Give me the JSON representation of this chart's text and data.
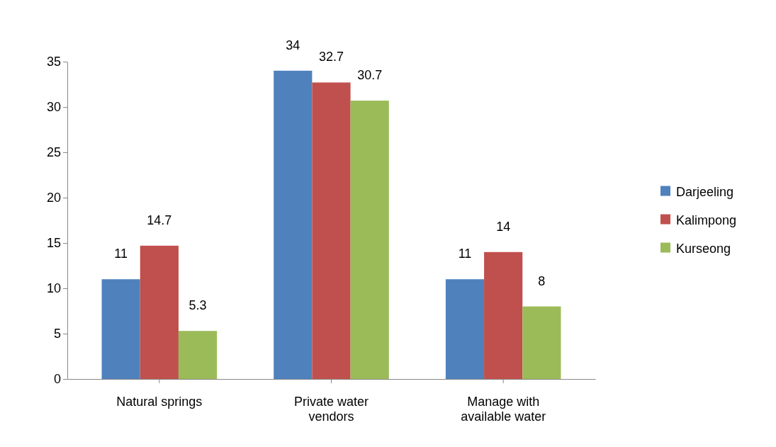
{
  "chart_data": {
    "type": "bar",
    "categories": [
      "Natural springs",
      "Private water vendors",
      "Manage with available water"
    ],
    "series": [
      {
        "name": "Darjeeling",
        "color": "#4f81bd",
        "values": [
          11,
          34,
          11
        ]
      },
      {
        "name": "Kalimpong",
        "color": "#c0504d",
        "values": [
          14.7,
          32.7,
          14
        ]
      },
      {
        "name": "Kurseong",
        "color": "#9bbb59",
        "values": [
          5.3,
          30.7,
          8
        ]
      }
    ],
    "ylim": [
      0,
      35
    ],
    "yticks": [
      0,
      5,
      10,
      15,
      20,
      25,
      30,
      35
    ],
    "grid": false,
    "legend": "right",
    "data_labels": true
  }
}
